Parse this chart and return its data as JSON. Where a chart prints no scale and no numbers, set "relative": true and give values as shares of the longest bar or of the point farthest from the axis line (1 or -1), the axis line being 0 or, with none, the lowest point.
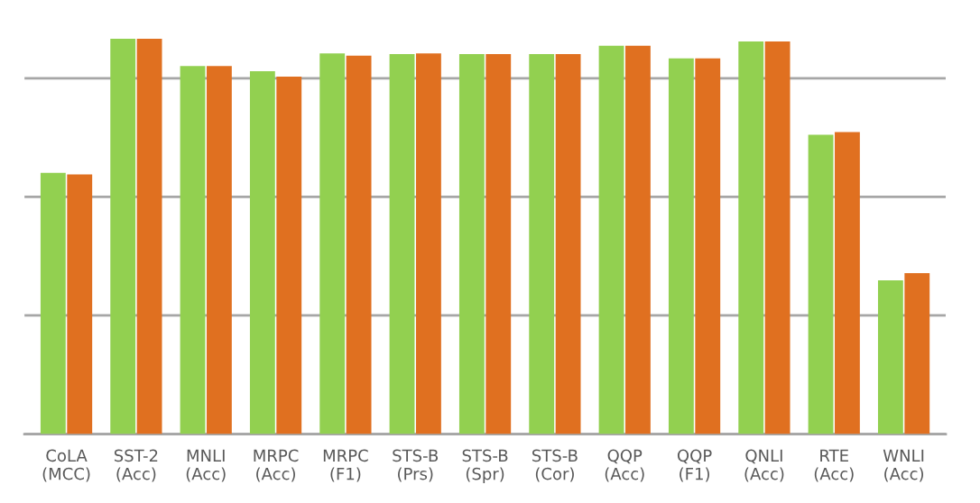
{
  "chart_data": {
    "type": "bar",
    "relative": true,
    "grid": "y",
    "legend": false,
    "categories": [
      "CoLA\n(MCC)",
      "SST-2\n(Acc)",
      "MNLI\n(Acc)",
      "MRPC\n(Acc)",
      "MRPC\n(F1)",
      "STS-B\n(Prs)",
      "STS-B\n(Spr)",
      "STS-B\n(Cor)",
      "QQP\n(Acc)",
      "QQP\n(F1)",
      "QNLI\n(Acc)",
      "RTE\n(Acc)",
      "WNLI\n(Acc)"
    ],
    "series": [
      {
        "color": "#92d050",
        "values": [
          0.661,
          1,
          0.931,
          0.918,
          0.963,
          0.961,
          0.961,
          0.961,
          0.982,
          0.95,
          0.993,
          0.757,
          0.389
        ]
      },
      {
        "color": "#e07020",
        "values": [
          0.657,
          1,
          0.931,
          0.904,
          0.957,
          0.963,
          0.961,
          0.961,
          0.982,
          0.95,
          0.993,
          0.764,
          0.407
        ]
      }
    ]
  }
}
